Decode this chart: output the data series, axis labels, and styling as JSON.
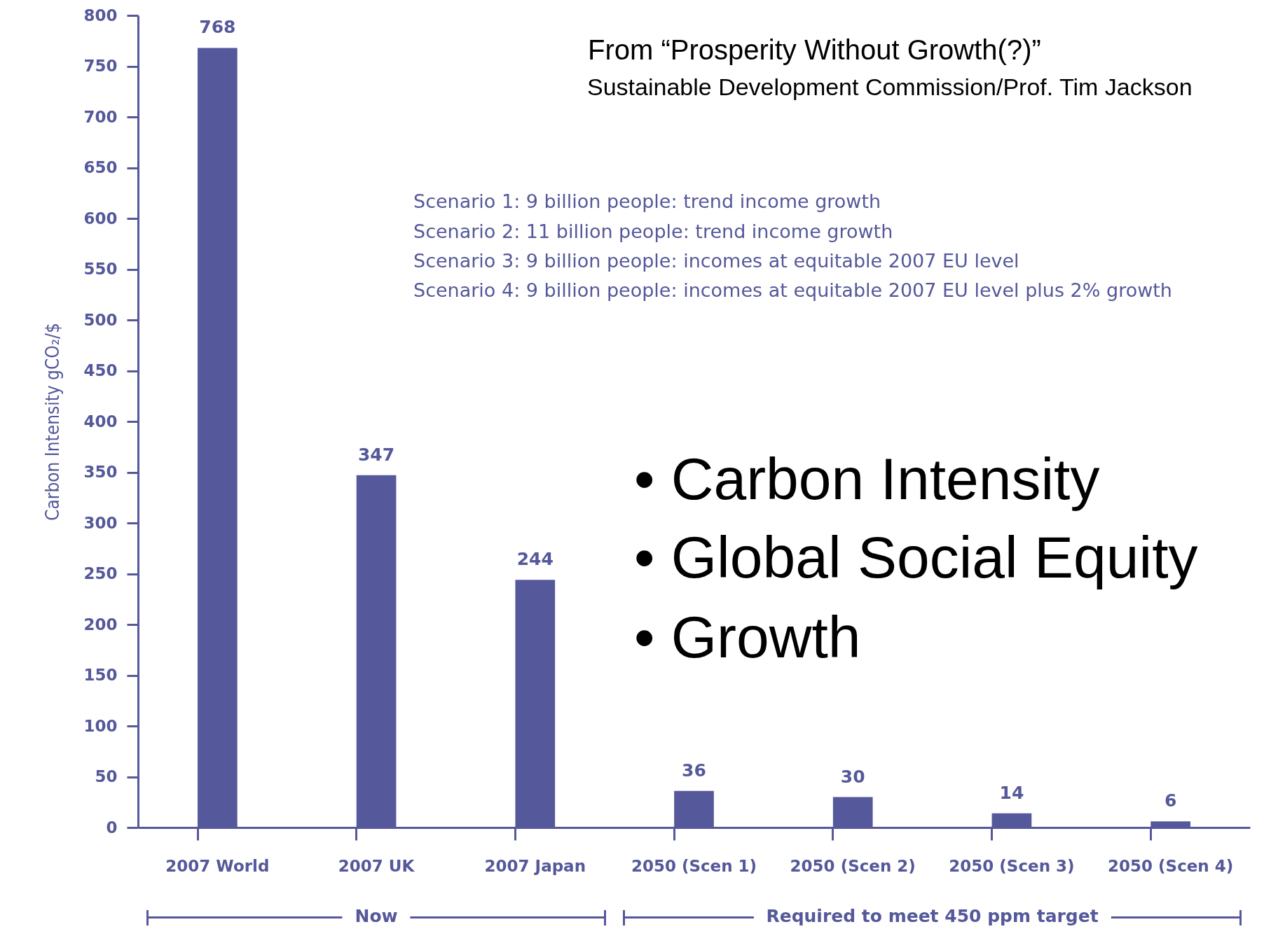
{
  "chart_data": {
    "type": "bar",
    "title": "From “Prosperity Without Growth(?)”",
    "subtitle": "Sustainable Development Commission/Prof. Tim Jackson",
    "ylabel": "Carbon Intensity gCO₂/$",
    "categories": [
      "2007 World",
      "2007 UK",
      "2007 Japan",
      "2050 (Scen 1)",
      "2050 (Scen 2)",
      "2050 (Scen 3)",
      "2050 (Scen 4)"
    ],
    "values": [
      768,
      347,
      244,
      36,
      30,
      14,
      6
    ],
    "color": "#55589a",
    "ylim": [
      0,
      800
    ],
    "yticks": [
      0,
      50,
      100,
      150,
      200,
      250,
      300,
      350,
      400,
      450,
      500,
      550,
      600,
      650,
      700,
      750,
      800
    ],
    "data_labels": true,
    "annotations": [
      "Scenario 1: 9 billion people: trend income growth",
      "Scenario 2: 11 billion people: trend income growth",
      "Scenario 3: 9 billion people: incomes at equitable 2007 EU level",
      "Scenario 4: 9 billion people: incomes at equitable 2007 EU level plus 2% growth",
      "• Carbon Intensity",
      "• Global Social Equity",
      "• Growth",
      "Now",
      "Required to meet 450 ppm target"
    ]
  }
}
